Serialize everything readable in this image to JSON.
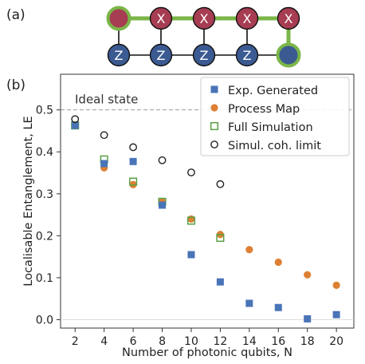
{
  "panel_a": {
    "label": "(a)",
    "top_row": [
      "",
      "X",
      "X",
      "X",
      "X"
    ],
    "bottom_row": [
      "Z",
      "Z",
      "Z",
      "Z",
      ""
    ],
    "colors": {
      "red": "#a63d52",
      "blue": "#3b5a92",
      "green": "#7ab648",
      "edge": "#111111"
    }
  },
  "panel_b": {
    "label": "(b)",
    "ideal_label": "Ideal state"
  },
  "chart_data": {
    "type": "scatter",
    "xlabel": "Number of photonic qubits, N",
    "ylabel": "Localisable Entanglement, LE",
    "xlim": [
      1.0,
      21.2
    ],
    "ylim": [
      -0.02,
      0.585
    ],
    "xticks": [
      2,
      4,
      6,
      8,
      10,
      12,
      14,
      16,
      18,
      20
    ],
    "yticks": [
      0.0,
      0.1,
      0.2,
      0.3,
      0.4,
      0.5
    ],
    "ytick_labels": [
      "0.0",
      "0.1",
      "0.2",
      "0.3",
      "0.4",
      "0.5"
    ],
    "grid": false,
    "legend_position": "top-right",
    "reference_lines": [
      {
        "y": 0.5,
        "style": "dashed",
        "color": "#999999"
      }
    ],
    "series": [
      {
        "name": "Exp. Generated",
        "marker": "square-filled",
        "color": "#4a74b8",
        "x": [
          2,
          4,
          6,
          8,
          10,
          12,
          14,
          16,
          18,
          20
        ],
        "y": [
          0.463,
          0.372,
          0.377,
          0.273,
          0.155,
          0.09,
          0.039,
          0.029,
          0.002,
          0.012
        ]
      },
      {
        "name": "Process Map",
        "marker": "circle-filled",
        "color": "#dd8033",
        "x": [
          2,
          4,
          6,
          8,
          10,
          12,
          14,
          16,
          18,
          20
        ],
        "y": [
          0.462,
          0.362,
          0.322,
          0.281,
          0.24,
          0.203,
          0.167,
          0.137,
          0.107,
          0.082
        ]
      },
      {
        "name": "Full Simulation",
        "marker": "square-open",
        "color": "#5aa045",
        "x": [
          2,
          4,
          6,
          8,
          10,
          12
        ],
        "y": [
          0.463,
          0.382,
          0.329,
          0.281,
          0.236,
          0.195
        ]
      },
      {
        "name": "Simul. coh. limit",
        "marker": "circle-open",
        "color": "#222222",
        "x": [
          2,
          4,
          6,
          8,
          10,
          12
        ],
        "y": [
          0.478,
          0.44,
          0.411,
          0.38,
          0.351,
          0.323
        ]
      }
    ]
  }
}
